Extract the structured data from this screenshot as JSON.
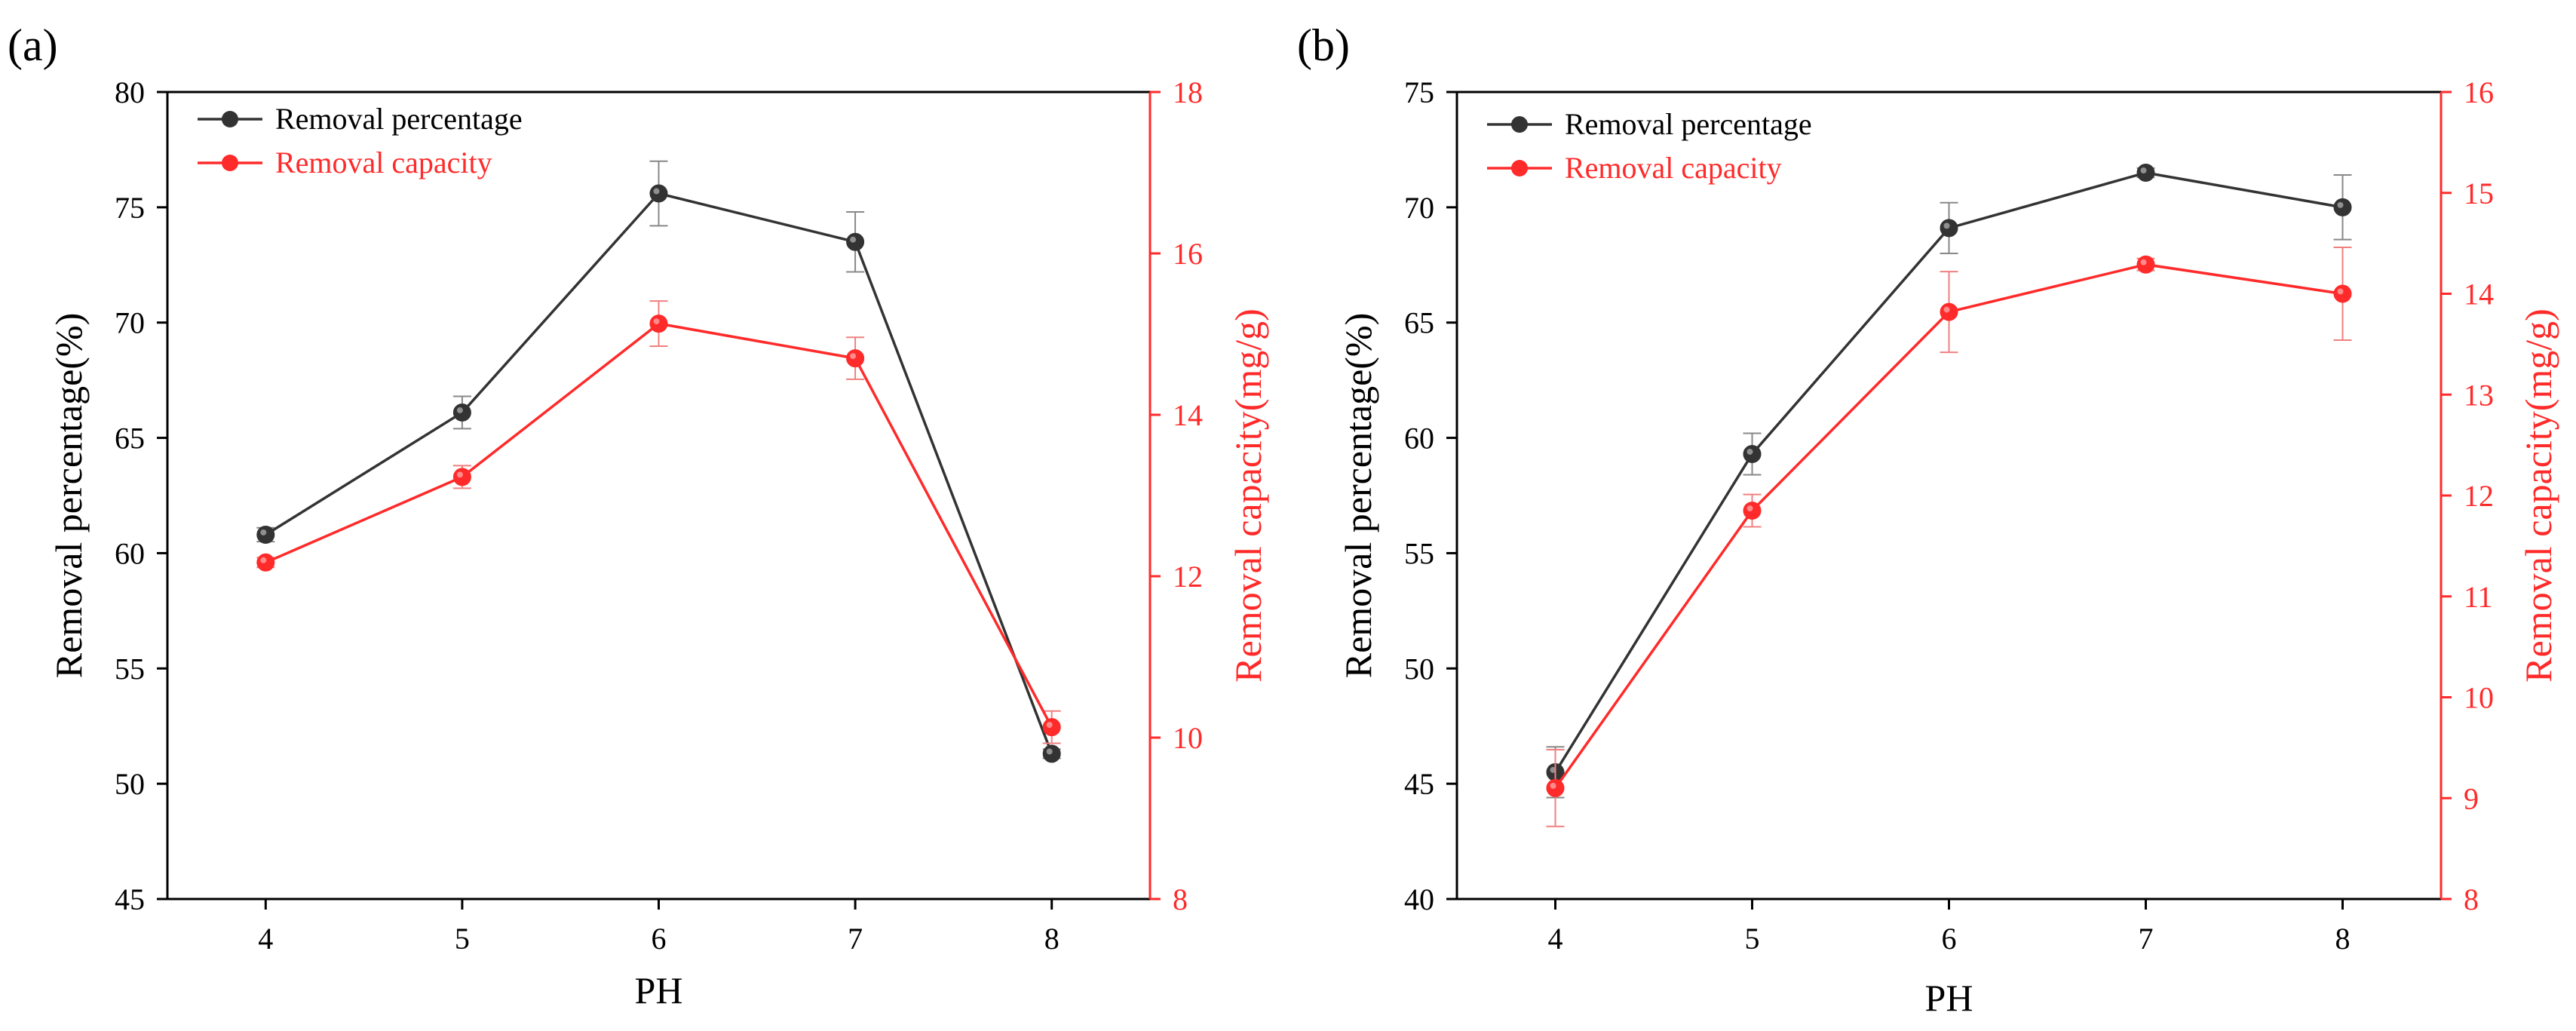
{
  "colors": {
    "series1": "#333333",
    "series2": "#ff2a2a",
    "axis": "#000000",
    "right_axis": "#ff2a2a"
  },
  "chart_data": [
    {
      "panel_label": "(a)",
      "type": "line",
      "xlabel": "PH",
      "ylabel": "Removal percentage(%)",
      "y2label": "Removal capacity(mg/g)",
      "x": [
        4,
        5,
        6,
        7,
        8
      ],
      "x_ticks": [
        4,
        5,
        6,
        7,
        8
      ],
      "xlim": [
        3.5,
        8.5
      ],
      "ylim": [
        45,
        80
      ],
      "y_ticks": [
        45,
        50,
        55,
        60,
        65,
        70,
        75,
        80
      ],
      "y2lim": [
        8,
        18
      ],
      "y2_ticks": [
        8,
        10,
        12,
        14,
        16,
        18
      ],
      "legend_position": "top-left",
      "series": [
        {
          "name": "Removal percentage",
          "axis": "left",
          "color": "#333333",
          "values": [
            60.8,
            66.1,
            75.6,
            73.5,
            51.3
          ],
          "errors": [
            0.3,
            0.7,
            1.4,
            1.3,
            0.2
          ]
        },
        {
          "name": "Removal capacity",
          "axis": "right",
          "color": "#ff2a2a",
          "values": [
            12.17,
            13.23,
            15.13,
            14.7,
            10.13
          ],
          "errors": [
            0.06,
            0.14,
            0.28,
            0.26,
            0.2
          ]
        }
      ]
    },
    {
      "panel_label": "(b)",
      "type": "line",
      "xlabel": "PH",
      "ylabel": "Removal percentage(%)",
      "y2label": "Removal capacity(mg/g)",
      "x": [
        4,
        5,
        6,
        7,
        8
      ],
      "x_ticks": [
        4,
        5,
        6,
        7,
        8
      ],
      "xlim": [
        3.5,
        8.5
      ],
      "ylim": [
        40,
        75
      ],
      "y_ticks": [
        40,
        45,
        50,
        55,
        60,
        65,
        70,
        75
      ],
      "y2lim": [
        8,
        16
      ],
      "y2_ticks": [
        8,
        9,
        10,
        11,
        12,
        13,
        14,
        15,
        16
      ],
      "legend_position": "top-left",
      "series": [
        {
          "name": "Removal percentage",
          "axis": "left",
          "color": "#333333",
          "values": [
            45.5,
            59.3,
            69.1,
            71.5,
            70.0
          ],
          "errors": [
            1.1,
            0.9,
            1.1,
            0.2,
            1.4
          ]
        },
        {
          "name": "Removal capacity",
          "axis": "right",
          "color": "#ff2a2a",
          "values": [
            9.1,
            11.85,
            13.82,
            14.29,
            14.0
          ],
          "errors": [
            0.38,
            0.16,
            0.4,
            0.06,
            0.46
          ]
        }
      ]
    }
  ]
}
